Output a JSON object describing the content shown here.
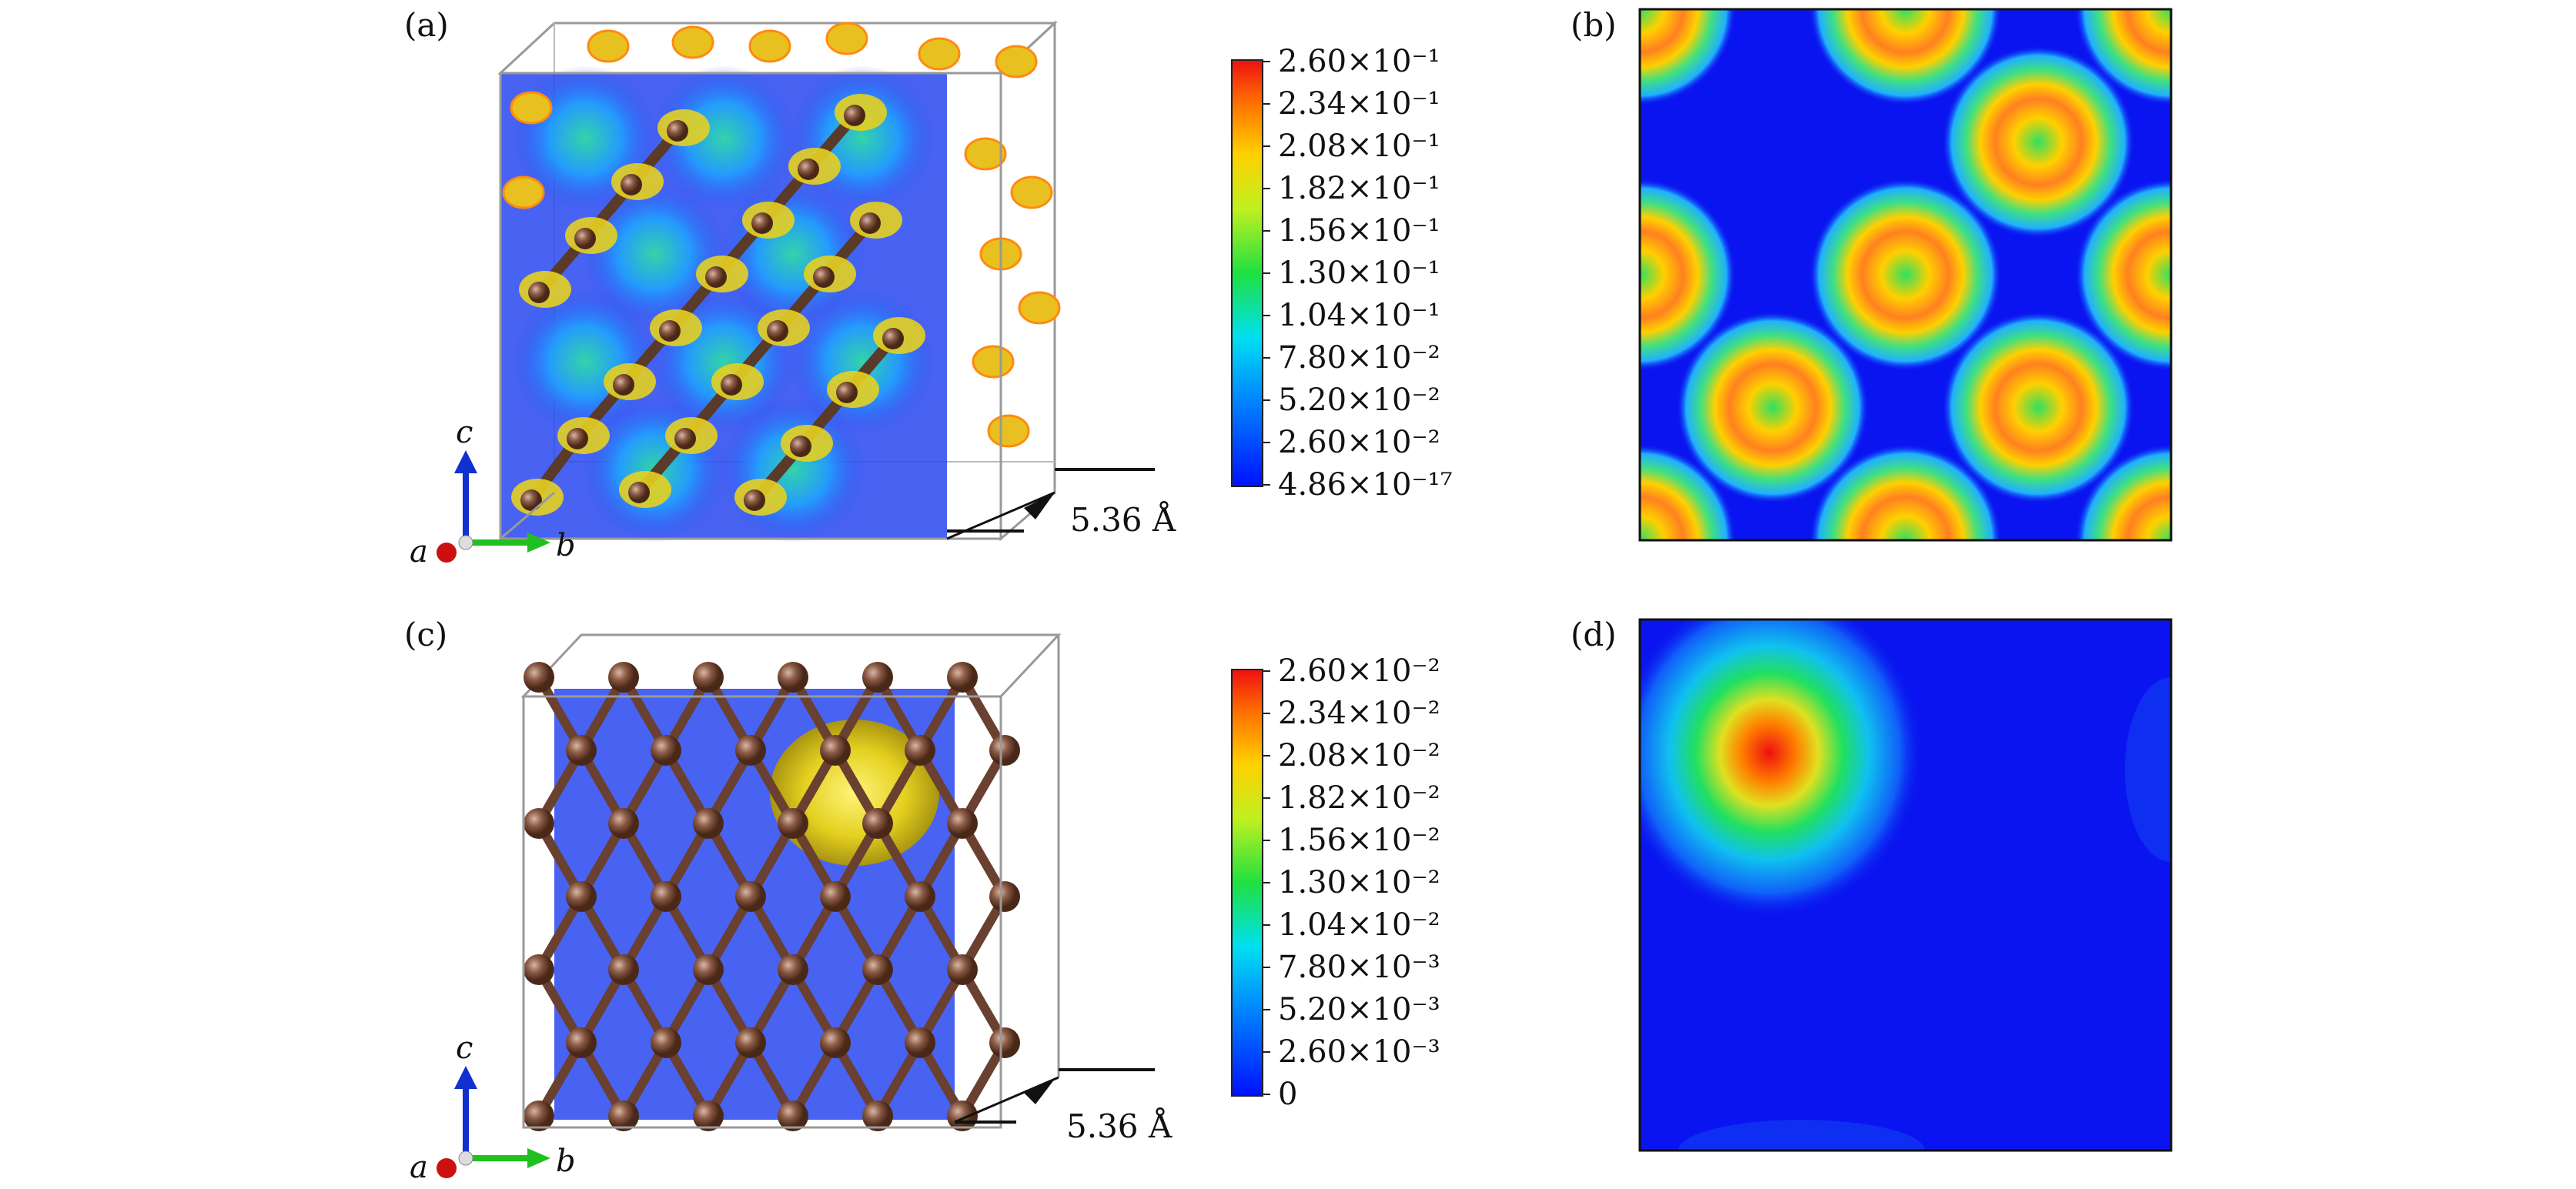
{
  "panels": {
    "a": {
      "label": "(a)",
      "scale_text": "5.36 Å",
      "axes": [
        "a",
        "b",
        "c"
      ]
    },
    "b": {
      "label": "(b)"
    },
    "c": {
      "label": "(c)",
      "scale_text": "5.36 Å",
      "axes": [
        "a",
        "b",
        "c"
      ]
    },
    "d": {
      "label": "(d)"
    }
  },
  "colorbar_top": {
    "ticks": [
      "2.60×10⁻¹",
      "2.34×10⁻¹",
      "2.08×10⁻¹",
      "1.82×10⁻¹",
      "1.56×10⁻¹",
      "1.30×10⁻¹",
      "1.04×10⁻¹",
      "7.80×10⁻²",
      "5.20×10⁻²",
      "2.60×10⁻²",
      "4.86×10⁻¹⁷"
    ]
  },
  "colorbar_bottom": {
    "ticks": [
      "2.60×10⁻²",
      "2.34×10⁻²",
      "2.08×10⁻²",
      "1.82×10⁻²",
      "1.56×10⁻²",
      "1.30×10⁻²",
      "1.04×10⁻²",
      "7.80×10⁻³",
      "5.20×10⁻³",
      "2.60×10⁻³",
      "0"
    ]
  },
  "colors": {
    "map_low": "#0a14f0",
    "atom": "#8a5a44",
    "isosurface": "#e8d020",
    "axis_a": "#cc1010",
    "axis_b": "#20c020",
    "axis_c": "#1030d0"
  }
}
